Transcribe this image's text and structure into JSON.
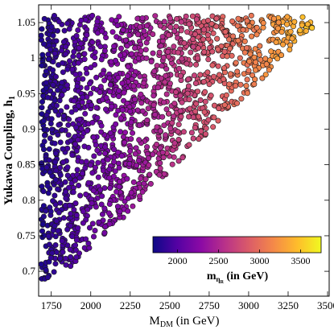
{
  "chart_data": {
    "type": "scatter",
    "title": "",
    "xlabel": "M",
    "xlabel_sub": "DM",
    "xlabel_suffix": " (in GeV)",
    "ylabel": "Yukawa Coupling, h",
    "ylabel_sub": "1",
    "xlim": [
      1670,
      3510
    ],
    "ylim": [
      0.665,
      1.075
    ],
    "xticks": [
      {
        "v": 1750,
        "label": "1750"
      },
      {
        "v": 2000,
        "label": "2000"
      },
      {
        "v": 2250,
        "label": "2250"
      },
      {
        "v": 2500,
        "label": "2500"
      },
      {
        "v": 2750,
        "label": "2750"
      },
      {
        "v": 3000,
        "label": "3000"
      },
      {
        "v": 3250,
        "label": "3250"
      },
      {
        "v": 3500,
        "label": "3500"
      }
    ],
    "yticks": [
      {
        "v": 0.7,
        "label": "0.7"
      },
      {
        "v": 0.75,
        "label": "0.75"
      },
      {
        "v": 0.8,
        "label": "0.8"
      },
      {
        "v": 0.85,
        "label": "0.85"
      },
      {
        "v": 0.9,
        "label": "0.9"
      },
      {
        "v": 0.95,
        "label": "0.95"
      },
      {
        "v": 1.0,
        "label": "1"
      },
      {
        "v": 1.05,
        "label": "1.05"
      }
    ],
    "colorbar": {
      "label": "m",
      "label_sub": "η",
      "label_subsub": "R",
      "label_suffix": "  (in GeV)",
      "range": [
        1700,
        3750
      ],
      "ticks": [
        {
          "v": 2000,
          "label": "2000"
        },
        {
          "v": 2500,
          "label": "2500"
        },
        {
          "v": 3000,
          "label": "3000"
        },
        {
          "v": 3500,
          "label": "3500"
        }
      ],
      "colormap": "plasma"
    },
    "grid": false,
    "legend": "none",
    "region": {
      "description_points": [
        [
          1690,
          0.665
        ],
        [
          1750,
          0.71
        ],
        [
          1900,
          0.78
        ],
        [
          2150,
          0.88
        ],
        [
          2400,
          0.97
        ],
        [
          2700,
          1.06
        ],
        [
          3500,
          1.065
        ],
        [
          3510,
          1.05
        ],
        [
          3400,
          0.96
        ],
        [
          3100,
          0.89
        ],
        [
          2800,
          0.83
        ],
        [
          2500,
          0.77
        ],
        [
          2300,
          0.735
        ],
        [
          2000,
          0.695
        ],
        [
          1750,
          0.68
        ]
      ],
      "x_min": 1685,
      "boundary": [
        [
          1685,
          0.665
        ],
        [
          1800,
          0.712
        ],
        [
          1950,
          0.7
        ],
        [
          2100,
          0.73
        ],
        [
          2300,
          0.76
        ],
        [
          2500,
          0.805
        ],
        [
          2700,
          0.855
        ],
        [
          2900,
          0.89
        ],
        [
          3100,
          0.92
        ],
        [
          3300,
          0.955
        ],
        [
          3500,
          0.985
        ]
      ],
      "y_max": 1.06,
      "point_count": 1700
    }
  }
}
